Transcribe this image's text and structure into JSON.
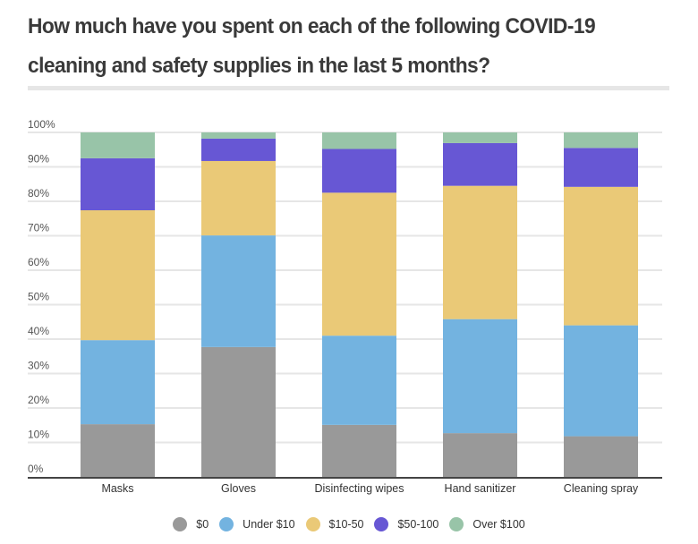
{
  "chart_data": {
    "type": "bar",
    "stacked": true,
    "title": "How much have you spent on each of the following COVID-19 cleaning and safety supplies in the last 5 months?",
    "xlabel": "",
    "ylabel": "",
    "ylim": [
      0,
      100
    ],
    "yticks": [
      "0%",
      "10%",
      "20%",
      "30%",
      "40%",
      "50%",
      "60%",
      "70%",
      "80%",
      "90%",
      "100%"
    ],
    "grid": true,
    "legend_position": "bottom-center",
    "categories": [
      "Masks",
      "Gloves",
      "Disinfecting wipes",
      "Hand sanitizer",
      "Cleaning spray"
    ],
    "series": [
      {
        "name": "$0",
        "color": "#999999",
        "values": [
          15.3,
          37.7,
          15.1,
          12.7,
          11.8
        ]
      },
      {
        "name": "Under $10",
        "color": "#73b3e0",
        "values": [
          24.4,
          32.4,
          25.9,
          33.1,
          32.2
        ]
      },
      {
        "name": "$10-50",
        "color": "#eac977",
        "values": [
          37.7,
          21.6,
          41.5,
          38.7,
          40.2
        ]
      },
      {
        "name": "$50-100",
        "color": "#6757d4",
        "values": [
          15.1,
          6.5,
          12.7,
          12.4,
          11.3
        ]
      },
      {
        "name": "Over $100",
        "color": "#98c4a8",
        "values": [
          7.5,
          1.8,
          4.8,
          3.1,
          4.5
        ]
      }
    ]
  }
}
